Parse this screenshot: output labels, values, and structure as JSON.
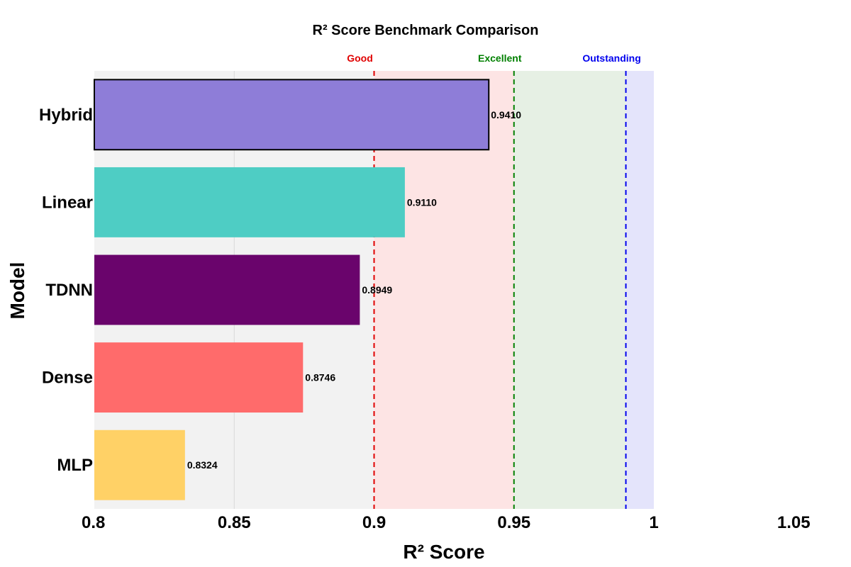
{
  "chart_data": {
    "type": "bar",
    "orientation": "horizontal",
    "title": "R² Score Benchmark Comparison",
    "xlabel": "R² Score",
    "ylabel": "Model",
    "xlim": [
      0.8,
      1.05
    ],
    "xticks": [
      "0.8",
      "0.85",
      "0.9",
      "0.95",
      "1",
      "1.05"
    ],
    "grid": true,
    "categories": [
      "Hybrid",
      "Linear",
      "TDNN",
      "Dense",
      "MLP"
    ],
    "values": [
      0.941,
      0.911,
      0.8949,
      0.8746,
      0.8324
    ],
    "value_labels": [
      "0.9410",
      "0.9110",
      "0.8949",
      "0.8746",
      "0.8324"
    ],
    "colors": [
      "#8e7dd8",
      "#4ecdc4",
      "#6a046c",
      "#ff6b6b",
      "#ffd166"
    ],
    "highlighted": "Hybrid",
    "thresholds": [
      {
        "label": "Good",
        "value": 0.9,
        "color": "#e00000",
        "band_end": 0.95,
        "band_color": "#fde4e4"
      },
      {
        "label": "Excellent",
        "value": 0.95,
        "color": "#008000",
        "band_end": 0.99,
        "band_color": "#e6f0e4"
      },
      {
        "label": "Outstanding",
        "value": 0.99,
        "color": "#0000ee",
        "band_end": 1.0,
        "band_color": "#e4e4fb"
      }
    ],
    "plot_background": "#f2f2f2"
  }
}
